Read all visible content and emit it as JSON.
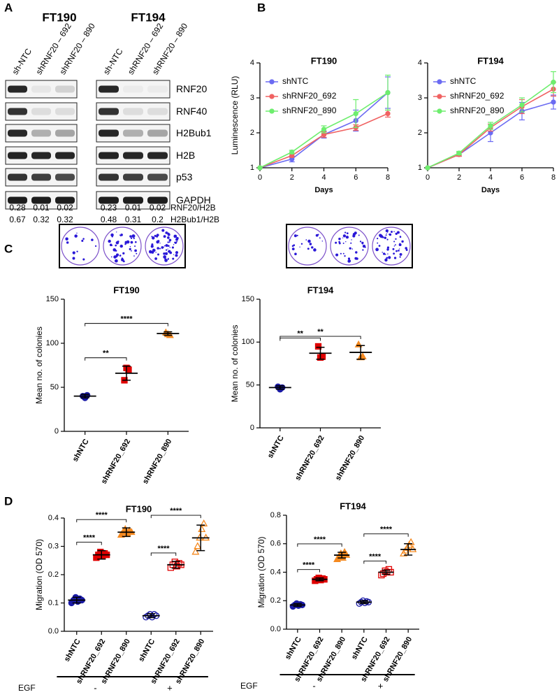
{
  "panels": [
    "A",
    "B",
    "C",
    "D"
  ],
  "blot": {
    "proteins": [
      "RNF20",
      "RNF40",
      "H2Bub1",
      "H2B",
      "p53",
      "GAPDH"
    ],
    "ratio_labels": [
      "RNF20/H2B",
      "H2Bub1/H2B"
    ],
    "cell_lines": [
      {
        "name": "FT190",
        "lanes": [
          "sh-NTC",
          "shRNF20 – 692",
          "shRNF20 – 890"
        ],
        "ratios": [
          [
            0.28,
            0.01,
            0.02
          ],
          [
            0.67,
            0.32,
            0.32
          ]
        ]
      },
      {
        "name": "FT194",
        "lanes": [
          "sh-NTC",
          "shRNF20 – 692",
          "shRNF20 – 890"
        ],
        "ratios": [
          [
            0.23,
            0.01,
            0.02
          ],
          [
            0.48,
            0.31,
            0.2
          ]
        ]
      }
    ]
  },
  "chart_data": [
    {
      "type": "line",
      "title": "FT190",
      "xlabel": "Days",
      "ylabel": "Luminescence (RLU)",
      "x": [
        0,
        2,
        4,
        6,
        8
      ],
      "xlim": [
        0,
        8
      ],
      "xticks": [
        0,
        2,
        4,
        6,
        8
      ],
      "ylim": [
        1,
        4
      ],
      "yticks": [
        1,
        2,
        3,
        4
      ],
      "legend": "upper left",
      "series": [
        {
          "name": "shNTC",
          "color": "#6b6bf2",
          "values": [
            1,
            1.25,
            1.95,
            2.35,
            3.15
          ],
          "errors": [
            0,
            0.08,
            0.1,
            0.3,
            0.45
          ]
        },
        {
          "name": "shRNF20_692",
          "color": "#f06262",
          "values": [
            1,
            1.35,
            1.95,
            2.15,
            2.55
          ],
          "errors": [
            0,
            0.05,
            0.08,
            0.08,
            0.1
          ]
        },
        {
          "name": "shRNF20_890",
          "color": "#6eee6e",
          "values": [
            1,
            1.45,
            2.1,
            2.55,
            3.15
          ],
          "errors": [
            0,
            0.05,
            0.1,
            0.4,
            0.5
          ]
        }
      ]
    },
    {
      "type": "line",
      "title": "FT194",
      "xlabel": "Days",
      "x": [
        0,
        2,
        4,
        6,
        8
      ],
      "xlim": [
        0,
        8
      ],
      "xticks": [
        0,
        2,
        4,
        6,
        8
      ],
      "ylim": [
        1,
        4
      ],
      "yticks": [
        1,
        2,
        3,
        4
      ],
      "legend": "upper left",
      "series": [
        {
          "name": "shNTC",
          "color": "#6b6bf2",
          "values": [
            1,
            1.38,
            2.0,
            2.62,
            2.88
          ],
          "errors": [
            0,
            0.05,
            0.25,
            0.25,
            0.2
          ]
        },
        {
          "name": "shRNF20_692",
          "color": "#f06262",
          "values": [
            1,
            1.38,
            2.15,
            2.75,
            3.25
          ],
          "errors": [
            0,
            0.05,
            0.1,
            0.2,
            0.2
          ]
        },
        {
          "name": "shRNF20_890",
          "color": "#6eee6e",
          "values": [
            1,
            1.42,
            2.2,
            2.8,
            3.45
          ],
          "errors": [
            0,
            0.05,
            0.1,
            0.2,
            0.3
          ]
        }
      ]
    },
    {
      "type": "dot",
      "title": "FT190",
      "ylabel": "Mean no. of colonies",
      "categories": [
        "shNTC",
        "shRNF20_692",
        "shRNF20_890"
      ],
      "points": [
        [
          40,
          38,
          41
        ],
        [
          58,
          72,
          70
        ],
        [
          112,
          110,
          109
        ]
      ],
      "means": [
        40,
        66,
        111
      ],
      "sd": [
        2,
        8,
        2
      ],
      "colors": [
        "#1a1aa6",
        "#e00000",
        "#f5891f"
      ],
      "markers": [
        "circle",
        "square",
        "triangle"
      ],
      "filled": [
        true,
        true,
        true
      ],
      "ylim": [
        0,
        150
      ],
      "yticks": [
        0,
        50,
        100,
        150
      ],
      "brackets": [
        {
          "from": 0,
          "to": 1,
          "label": "**"
        },
        {
          "from": 0,
          "to": 2,
          "label": "****"
        }
      ]
    },
    {
      "type": "dot",
      "title": "FT194",
      "ylabel": "Mean no. of colonies",
      "categories": [
        "shNTC",
        "shRNF20_692",
        "shRNF20_890"
      ],
      "points": [
        [
          48,
          45,
          47
        ],
        [
          95,
          82,
          83
        ],
        [
          97,
          82,
          83
        ]
      ],
      "means": [
        47,
        87,
        88
      ],
      "sd": [
        2,
        7,
        8
      ],
      "colors": [
        "#1a1aa6",
        "#e00000",
        "#f5891f"
      ],
      "markers": [
        "circle",
        "square",
        "triangle"
      ],
      "filled": [
        true,
        true,
        true
      ],
      "ylim": [
        0,
        150
      ],
      "yticks": [
        0,
        50,
        100,
        150
      ],
      "brackets": [
        {
          "from": 0,
          "to": 1,
          "label": "**"
        },
        {
          "from": 0,
          "to": 2,
          "label": "**"
        }
      ]
    },
    {
      "type": "dot",
      "title": "FT190",
      "ylabel": "Migration (OD 570)",
      "categories": [
        "shNTC",
        "shRNF20_692",
        "shRNF20_890",
        "shNTC",
        "shRNF20_692",
        "shRNF20_890"
      ],
      "points": [
        [
          0.1,
          0.11,
          0.12,
          0.105,
          0.115,
          0.11
        ],
        [
          0.26,
          0.27,
          0.28,
          0.265,
          0.275,
          0.27
        ],
        [
          0.34,
          0.35,
          0.36,
          0.345,
          0.355,
          0.35
        ],
        [
          0.05,
          0.055,
          0.06,
          0.05,
          0.06,
          0.055
        ],
        [
          0.225,
          0.235,
          0.245,
          0.23,
          0.24,
          0.235
        ],
        [
          0.28,
          0.3,
          0.33,
          0.36,
          0.38,
          0.33
        ]
      ],
      "means": [
        0.11,
        0.27,
        0.35,
        0.055,
        0.235,
        0.33
      ],
      "sd": [
        0.01,
        0.015,
        0.015,
        0.007,
        0.012,
        0.045
      ],
      "colors": [
        "#1a1aa6",
        "#e00000",
        "#f5891f",
        "#1a1aa6",
        "#e00000",
        "#f5891f"
      ],
      "markers": [
        "circle",
        "square",
        "triangle",
        "circle",
        "square",
        "triangle"
      ],
      "filled": [
        true,
        true,
        true,
        false,
        false,
        false
      ],
      "ylim": [
        0,
        0.4
      ],
      "yticks": [
        {
          "value": 0,
          "label": "0.0"
        },
        0.1,
        0.2,
        0.3,
        0.4
      ],
      "brackets": [
        {
          "from": 0,
          "to": 1,
          "label": "****"
        },
        {
          "from": 0,
          "to": 2,
          "label": "****"
        },
        {
          "from": 3,
          "to": 4,
          "label": "****"
        },
        {
          "from": 3,
          "to": 5,
          "label": "****"
        }
      ],
      "group_title": "EGF",
      "groups": [
        {
          "label": "-",
          "from": 0,
          "to": 2
        },
        {
          "label": "+",
          "from": 3,
          "to": 5
        }
      ]
    },
    {
      "type": "dot",
      "title": "FT194",
      "ylabel": "Migration (OD 570)",
      "categories": [
        "shNTC",
        "shRNF20_692",
        "shRNF20_890",
        "shNTC",
        "shRNF20_692",
        "shRNF20_890"
      ],
      "points": [
        [
          0.16,
          0.17,
          0.18,
          0.165,
          0.175,
          0.17
        ],
        [
          0.34,
          0.35,
          0.36,
          0.345,
          0.355,
          0.35
        ],
        [
          0.49,
          0.51,
          0.53,
          0.5,
          0.54,
          0.52
        ],
        [
          0.18,
          0.19,
          0.2,
          0.185,
          0.195,
          0.19
        ],
        [
          0.38,
          0.39,
          0.41,
          0.4,
          0.42,
          0.4
        ],
        [
          0.53,
          0.55,
          0.57,
          0.59,
          0.61,
          0.56
        ]
      ],
      "means": [
        0.17,
        0.35,
        0.52,
        0.19,
        0.4,
        0.56
      ],
      "sd": [
        0.01,
        0.01,
        0.02,
        0.01,
        0.015,
        0.04
      ],
      "colors": [
        "#1a1aa6",
        "#e00000",
        "#f5891f",
        "#1a1aa6",
        "#e00000",
        "#f5891f"
      ],
      "markers": [
        "circle",
        "square",
        "triangle",
        "circle",
        "square",
        "triangle"
      ],
      "filled": [
        true,
        true,
        true,
        false,
        false,
        false
      ],
      "ylim": [
        0,
        0.8
      ],
      "yticks": [
        {
          "value": 0,
          "label": "0.0"
        },
        0.2,
        0.4,
        0.6,
        0.8
      ],
      "brackets": [
        {
          "from": 0,
          "to": 1,
          "label": "****"
        },
        {
          "from": 0,
          "to": 2,
          "label": "****"
        },
        {
          "from": 3,
          "to": 4,
          "label": "****"
        },
        {
          "from": 3,
          "to": 5,
          "label": "****"
        }
      ],
      "group_title": "EGF",
      "groups": [
        {
          "label": "-",
          "from": 0,
          "to": 2
        },
        {
          "label": "+",
          "from": 3,
          "to": 5
        }
      ]
    }
  ]
}
